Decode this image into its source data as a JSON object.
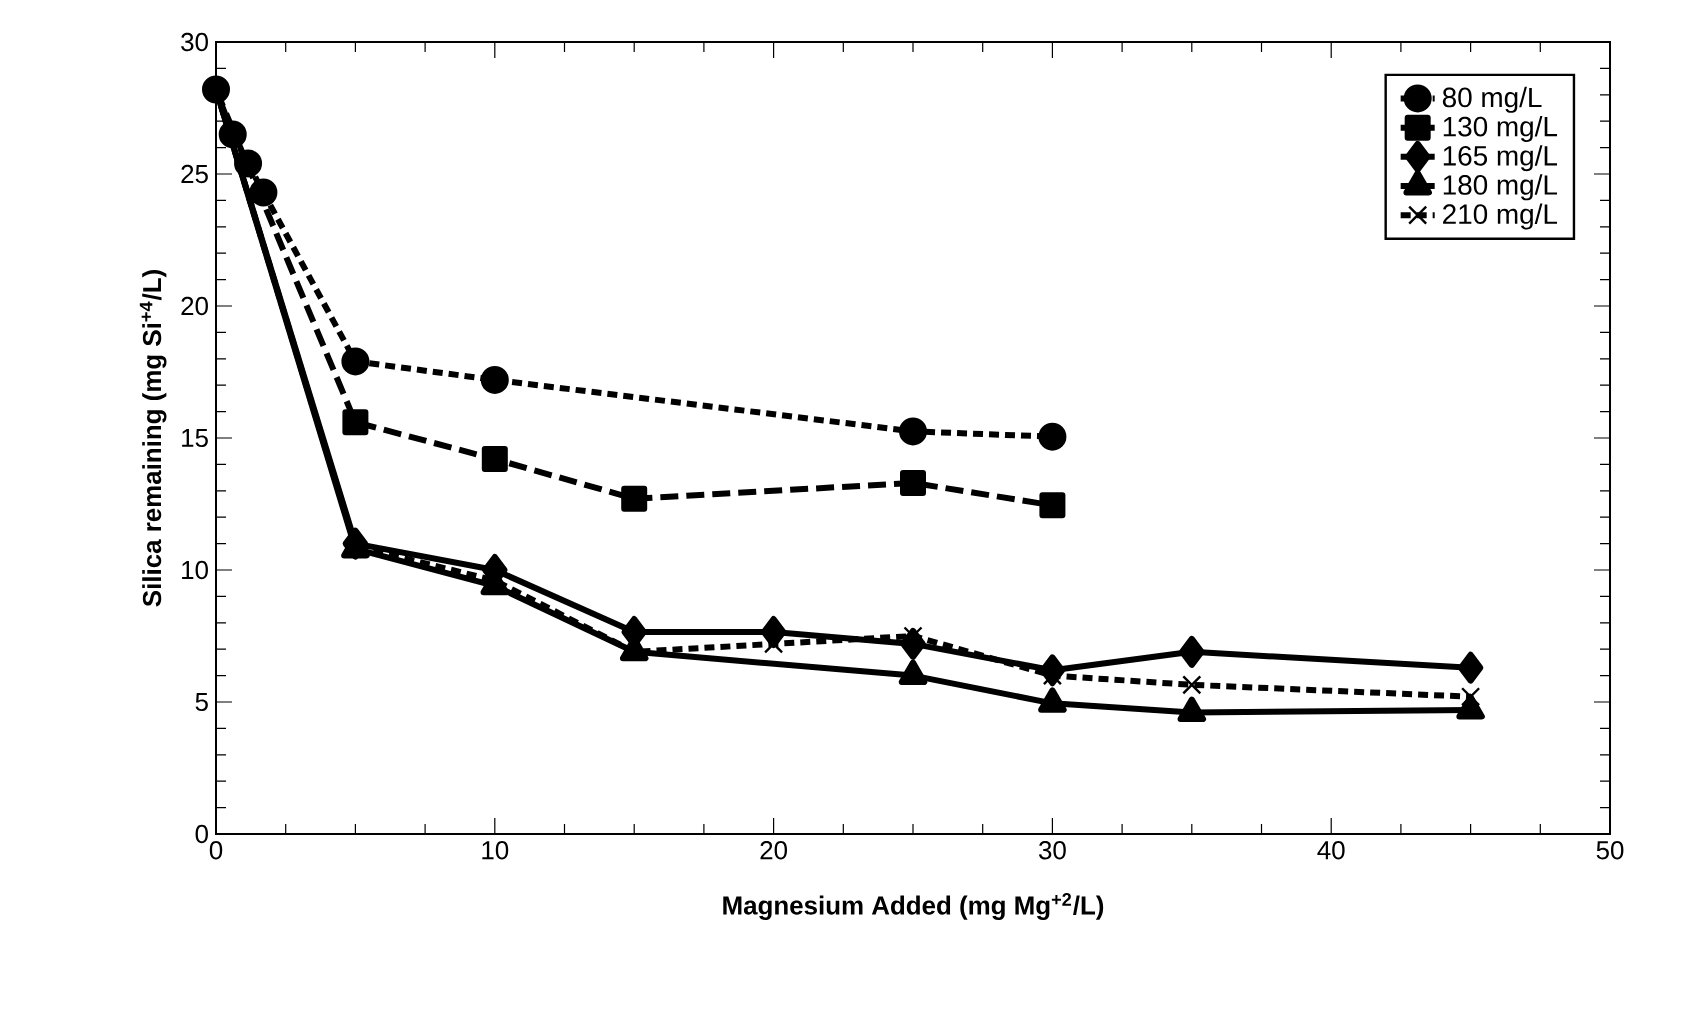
{
  "chart_data": {
    "type": "line",
    "xlabel": "Magnesium Added (mg Mg$^{+2}$/L)",
    "ylabel": "Silica remaining (mg Si$^{+4}$/L)",
    "xlim": [
      0,
      50
    ],
    "xticks": [
      0,
      10,
      20,
      30,
      40,
      50
    ],
    "ylim": [
      0,
      30
    ],
    "yticks": [
      0,
      5,
      10,
      15,
      20,
      25,
      30
    ],
    "grid": false,
    "legend": "top right",
    "series": [
      {
        "name": "80 mg/L",
        "color": "#000000",
        "marker": "circle",
        "line_style": "dotted",
        "x": [
          0,
          0.6,
          1.15,
          1.7,
          5,
          10,
          25,
          30
        ],
        "values": [
          28.2,
          26.5,
          25.4,
          24.3,
          17.9,
          17.2,
          15.25,
          15.05
        ]
      },
      {
        "name": "130 mg/L",
        "color": "#000000",
        "marker": "square",
        "line_style": "dashed",
        "x": [
          0,
          5,
          10,
          15,
          25,
          30
        ],
        "values": [
          28.2,
          15.6,
          14.2,
          12.7,
          13.3,
          12.45
        ]
      },
      {
        "name": "165 mg/L",
        "color": "#000000",
        "marker": "diamond",
        "line_style": "solid",
        "x": [
          0,
          5,
          10,
          15,
          20,
          25,
          30,
          35,
          45
        ],
        "values": [
          28.2,
          11.0,
          10.0,
          7.65,
          7.65,
          7.2,
          6.2,
          6.9,
          6.3
        ]
      },
      {
        "name": "180 mg/L",
        "color": "#000000",
        "marker": "triangle",
        "line_style": "solid",
        "x": [
          0,
          5,
          10,
          15,
          25,
          30,
          35,
          45
        ],
        "values": [
          28.2,
          10.8,
          9.4,
          6.9,
          6.0,
          4.95,
          4.6,
          4.7
        ]
      },
      {
        "name": "210 mg/L",
        "color": "#000000",
        "marker": "cross",
        "line_style": "dotted",
        "x": [
          0,
          5,
          10,
          15,
          20,
          25,
          30,
          35,
          45
        ],
        "values": [
          28.2,
          10.9,
          9.6,
          6.9,
          7.2,
          7.5,
          6.0,
          5.65,
          5.2
        ]
      }
    ]
  }
}
